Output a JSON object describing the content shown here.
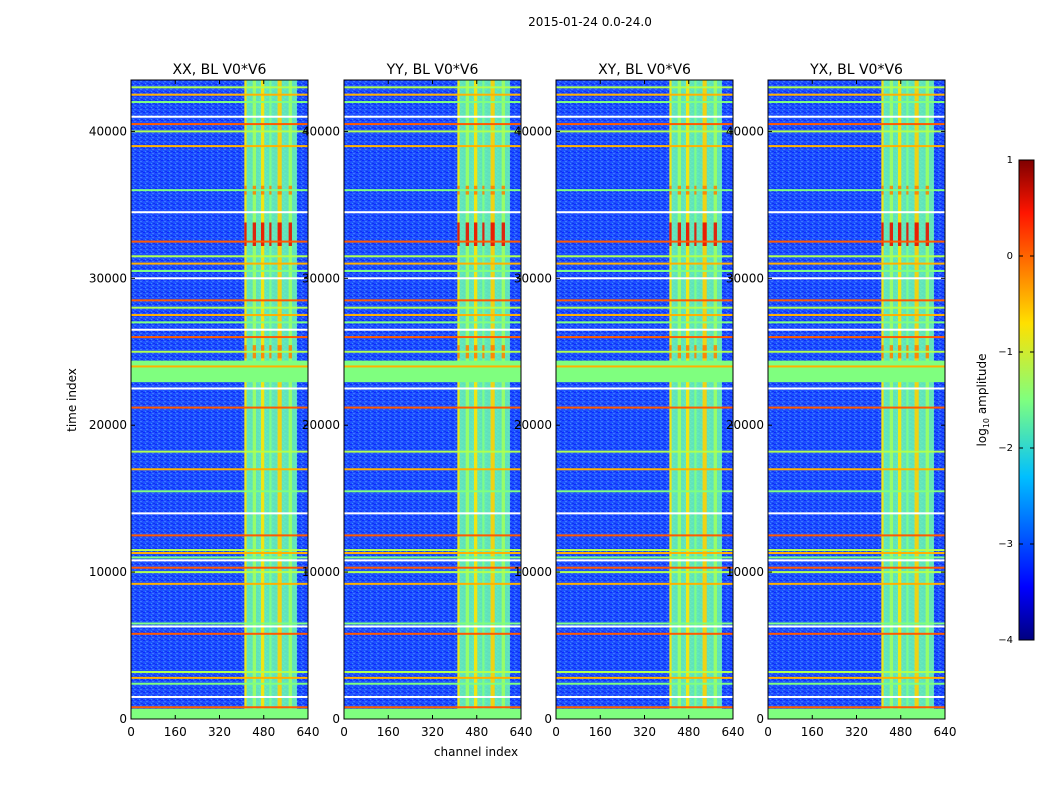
{
  "chart_data": {
    "type": "heatmap",
    "suptitle": "2015-01-24 0.0-24.0",
    "xlabel": "channel index",
    "ylabel": "time index",
    "xlim": [
      0,
      640
    ],
    "ylim": [
      0,
      43500
    ],
    "xticks": [
      0,
      160,
      320,
      480,
      640
    ],
    "yticks": [
      0,
      10000,
      20000,
      30000,
      40000
    ],
    "xtick_labels": [
      "0",
      "160",
      "320",
      "480",
      "640"
    ],
    "ytick_labels": [
      "0",
      "10000",
      "20000",
      "30000",
      "40000"
    ],
    "panels": [
      {
        "title": "XX, BL V0*V6"
      },
      {
        "title": "YY, BL V0*V6"
      },
      {
        "title": "XY, BL V0*V6"
      },
      {
        "title": "YX, BL V0*V6"
      }
    ],
    "bright_channel_range": [
      410,
      600
    ],
    "flagged_time_rows": [
      800,
      1500,
      2400,
      2800,
      3200,
      5800,
      6300,
      6500,
      9200,
      10000,
      10300,
      10800,
      11000,
      11300,
      11500,
      12500,
      14000,
      15500,
      17000,
      18200,
      21200,
      22500,
      23000,
      24000,
      25000,
      26000,
      26500,
      27000,
      27500,
      28000,
      28500,
      30000,
      30500,
      31000,
      31500,
      32500,
      34500,
      36000,
      39000,
      40000,
      40500,
      41000,
      42000,
      42500,
      43000
    ],
    "flagged_time_bands": [
      [
        0,
        700
      ],
      [
        23000,
        24400
      ]
    ],
    "colorbar": {
      "label": "log10 amplitude",
      "label_main": "log",
      "label_sub": "10",
      "label_tail": " amplitude",
      "range": [
        -4,
        1
      ],
      "ticks": [
        "−4",
        "−3",
        "−2",
        "−1",
        "0",
        "1"
      ],
      "tick_values": [
        -4,
        -3,
        -2,
        -1,
        0,
        1
      ],
      "colormap": "jet"
    }
  }
}
